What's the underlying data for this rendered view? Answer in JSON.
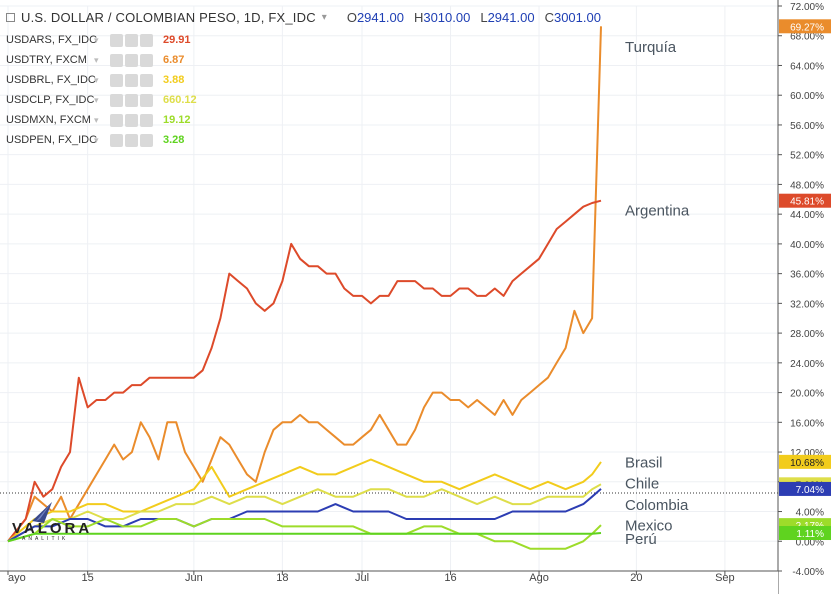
{
  "header": {
    "title": "U.S. DOLLAR / COLOMBIAN PESO, 1D, FX_IDC",
    "ohlc": [
      {
        "k": "O",
        "v": "2941.00"
      },
      {
        "k": "H",
        "v": "3010.00"
      },
      {
        "k": "L",
        "v": "2941.00"
      },
      {
        "k": "C",
        "v": "3001.00"
      }
    ]
  },
  "legend": [
    {
      "symbol": "USDARS, FX_IDC",
      "value": "29.91",
      "color": "#dd4a2a"
    },
    {
      "symbol": "USDTRY, FXCM",
      "value": "6.87",
      "color": "#ea8c2c"
    },
    {
      "symbol": "USDBRL, FX_IDC",
      "value": "3.88",
      "color": "#f2cc1c"
    },
    {
      "symbol": "USDCLP, FX_IDC",
      "value": "660.12",
      "color": "#dede4a"
    },
    {
      "symbol": "USDMXN, FXCM",
      "value": "19.12",
      "color": "#9ddc2a"
    },
    {
      "symbol": "USDPEN, FX_IDC",
      "value": "3.28",
      "color": "#5fd31f"
    }
  ],
  "logo": {
    "word": "VALORA",
    "sub": "ANALITIK"
  },
  "chart_data": {
    "type": "line",
    "xlabel": "",
    "ylabel": "",
    "ylim": [
      -4,
      72
    ],
    "y_ticks": [
      -4,
      0,
      4,
      8,
      12,
      16,
      20,
      24,
      28,
      32,
      36,
      40,
      44,
      48,
      52,
      56,
      60,
      64,
      68,
      72
    ],
    "y_tick_suffix": ".00%",
    "x_ticks": [
      {
        "label": "ayo",
        "x": 0
      },
      {
        "label": "15",
        "x": 9
      },
      {
        "label": "Jun",
        "x": 21
      },
      {
        "label": "18",
        "x": 31
      },
      {
        "label": "Jul",
        "x": 40
      },
      {
        "label": "16",
        "x": 50
      },
      {
        "label": "Ago",
        "x": 60
      },
      {
        "label": "20",
        "x": 71
      },
      {
        "label": "Sep",
        "x": 81
      }
    ],
    "xlim": [
      0,
      87
    ],
    "baseline": 6.5,
    "series": [
      {
        "name": "Turquía",
        "color": "#ea8c2c",
        "end_label": "69.27%",
        "label_y": 66.5,
        "x": [
          0,
          2,
          3,
          4,
          5,
          6,
          7,
          8,
          9,
          10,
          11,
          12,
          13,
          14,
          15,
          16,
          17,
          18,
          19,
          20,
          21,
          22,
          23,
          24,
          25,
          26,
          27,
          28,
          29,
          30,
          31,
          32,
          33,
          34,
          35,
          36,
          37,
          38,
          39,
          40,
          41,
          42,
          43,
          44,
          45,
          46,
          47,
          48,
          49,
          50,
          51,
          52,
          53,
          54,
          55,
          56,
          57,
          58,
          59,
          60,
          61,
          62,
          63,
          64,
          65,
          66,
          67
        ],
        "values": [
          0,
          3,
          6,
          5,
          4,
          6,
          3,
          5,
          7,
          9,
          11,
          13,
          11,
          12,
          16,
          14,
          11,
          16,
          16,
          12,
          10,
          8,
          11,
          14,
          13,
          11,
          9,
          8,
          12,
          15,
          16,
          16,
          17,
          16,
          16,
          15,
          14,
          13,
          13,
          14,
          15,
          17,
          15,
          13,
          13,
          15,
          18,
          20,
          20,
          19,
          19,
          18,
          19,
          18,
          17,
          19,
          17,
          19,
          20,
          21,
          22,
          24,
          26,
          31,
          28,
          30,
          69.27
        ]
      },
      {
        "name": "Argentina",
        "color": "#dd4a2a",
        "end_label": "45.81%",
        "label_y": 44.5,
        "x": [
          0,
          2,
          3,
          4,
          5,
          6,
          7,
          8,
          9,
          10,
          11,
          12,
          13,
          14,
          15,
          16,
          17,
          18,
          19,
          20,
          21,
          22,
          23,
          24,
          25,
          26,
          27,
          28,
          29,
          30,
          31,
          32,
          33,
          34,
          35,
          36,
          37,
          38,
          39,
          40,
          41,
          42,
          43,
          44,
          45,
          46,
          47,
          48,
          49,
          50,
          51,
          52,
          53,
          54,
          55,
          56,
          57,
          58,
          59,
          60,
          61,
          62,
          63,
          64,
          65,
          66,
          67
        ],
        "values": [
          0,
          3,
          8,
          6,
          7,
          10,
          12,
          22,
          18,
          19,
          19,
          20,
          20,
          21,
          21,
          22,
          22,
          22,
          22,
          22,
          22,
          23,
          26,
          30,
          36,
          35,
          34,
          32,
          31,
          32,
          35,
          40,
          38,
          37,
          37,
          36,
          36,
          34,
          33,
          33,
          32,
          33,
          33,
          35,
          35,
          35,
          34,
          34,
          33,
          33,
          34,
          34,
          33,
          33,
          34,
          33,
          35,
          36,
          37,
          38,
          40,
          42,
          43,
          44,
          45,
          45.5,
          45.81
        ]
      },
      {
        "name": "Brasil",
        "color": "#f2cc1c",
        "end_label": "10.68%",
        "label_y": 10.6,
        "x": [
          0,
          3,
          5,
          7,
          9,
          11,
          13,
          15,
          17,
          19,
          21,
          23,
          25,
          27,
          29,
          31,
          33,
          35,
          37,
          39,
          41,
          43,
          45,
          47,
          49,
          51,
          53,
          55,
          57,
          59,
          61,
          63,
          65,
          66,
          67
        ],
        "values": [
          0,
          3,
          4,
          4,
          5,
          5,
          4,
          4,
          5,
          6,
          7,
          10,
          6,
          7,
          8,
          9,
          10,
          9,
          9,
          10,
          11,
          10,
          9,
          8,
          8,
          7,
          8,
          9,
          8,
          7,
          8,
          7,
          8,
          9,
          10.68
        ]
      },
      {
        "name": "Chile",
        "color": "#dede4a",
        "end_label": "7.66%",
        "label_y": 7.8,
        "x": [
          0,
          3,
          5,
          7,
          9,
          11,
          13,
          15,
          17,
          19,
          21,
          23,
          25,
          27,
          29,
          31,
          33,
          35,
          37,
          39,
          41,
          43,
          45,
          47,
          49,
          51,
          53,
          55,
          57,
          59,
          61,
          63,
          65,
          66,
          67
        ],
        "values": [
          0,
          2,
          3,
          3,
          4,
          3,
          3,
          4,
          4,
          5,
          5,
          6,
          5,
          6,
          6,
          5,
          6,
          7,
          6,
          6,
          7,
          7,
          6,
          6,
          7,
          6,
          5,
          6,
          5,
          5,
          6,
          6,
          6,
          7,
          7.66
        ]
      },
      {
        "name": "Colombia",
        "color": "#2c3db3",
        "end_label": "7.04%",
        "label_y": 4.9,
        "x": [
          0,
          3,
          5,
          7,
          9,
          11,
          13,
          15,
          17,
          19,
          21,
          23,
          25,
          27,
          29,
          31,
          33,
          35,
          37,
          39,
          41,
          43,
          45,
          47,
          49,
          51,
          53,
          55,
          57,
          59,
          61,
          63,
          65,
          66,
          67
        ],
        "values": [
          0,
          2,
          2,
          3,
          3,
          2,
          2,
          3,
          3,
          3,
          2,
          3,
          3,
          4,
          4,
          4,
          4,
          4,
          5,
          4,
          4,
          4,
          3,
          3,
          3,
          3,
          3,
          3,
          4,
          4,
          4,
          4,
          5,
          6,
          7.04
        ]
      },
      {
        "name": "Mexico",
        "color": "#9ddc2a",
        "end_label": "2.17%",
        "label_y": 2.1,
        "x": [
          0,
          3,
          5,
          7,
          9,
          11,
          13,
          15,
          17,
          19,
          21,
          23,
          25,
          27,
          29,
          31,
          33,
          35,
          37,
          39,
          41,
          43,
          45,
          47,
          49,
          51,
          53,
          55,
          57,
          59,
          61,
          63,
          65,
          66,
          67
        ],
        "values": [
          0,
          1,
          3,
          2,
          2,
          3,
          2,
          2,
          3,
          3,
          2,
          3,
          3,
          3,
          3,
          2,
          2,
          2,
          2,
          2,
          1,
          1,
          1,
          2,
          2,
          1,
          1,
          0,
          0,
          -1,
          -1,
          -1,
          0,
          1,
          2.17
        ]
      },
      {
        "name": "Perú",
        "color": "#5fd31f",
        "end_label": "1.11%",
        "label_y": 0.3,
        "x": [
          0,
          3,
          5,
          7,
          9,
          11,
          13,
          15,
          17,
          19,
          21,
          23,
          25,
          27,
          29,
          31,
          33,
          35,
          37,
          39,
          41,
          43,
          45,
          47,
          49,
          51,
          53,
          55,
          57,
          59,
          61,
          63,
          65,
          66,
          67
        ],
        "values": [
          0,
          1,
          1,
          1,
          1,
          1,
          1,
          1,
          1,
          1,
          1,
          1,
          1,
          1,
          1,
          1,
          1,
          1,
          1,
          1,
          1,
          1,
          1,
          1,
          1,
          1,
          1,
          1,
          1,
          1,
          1,
          1,
          1,
          1,
          1.11
        ]
      }
    ]
  }
}
